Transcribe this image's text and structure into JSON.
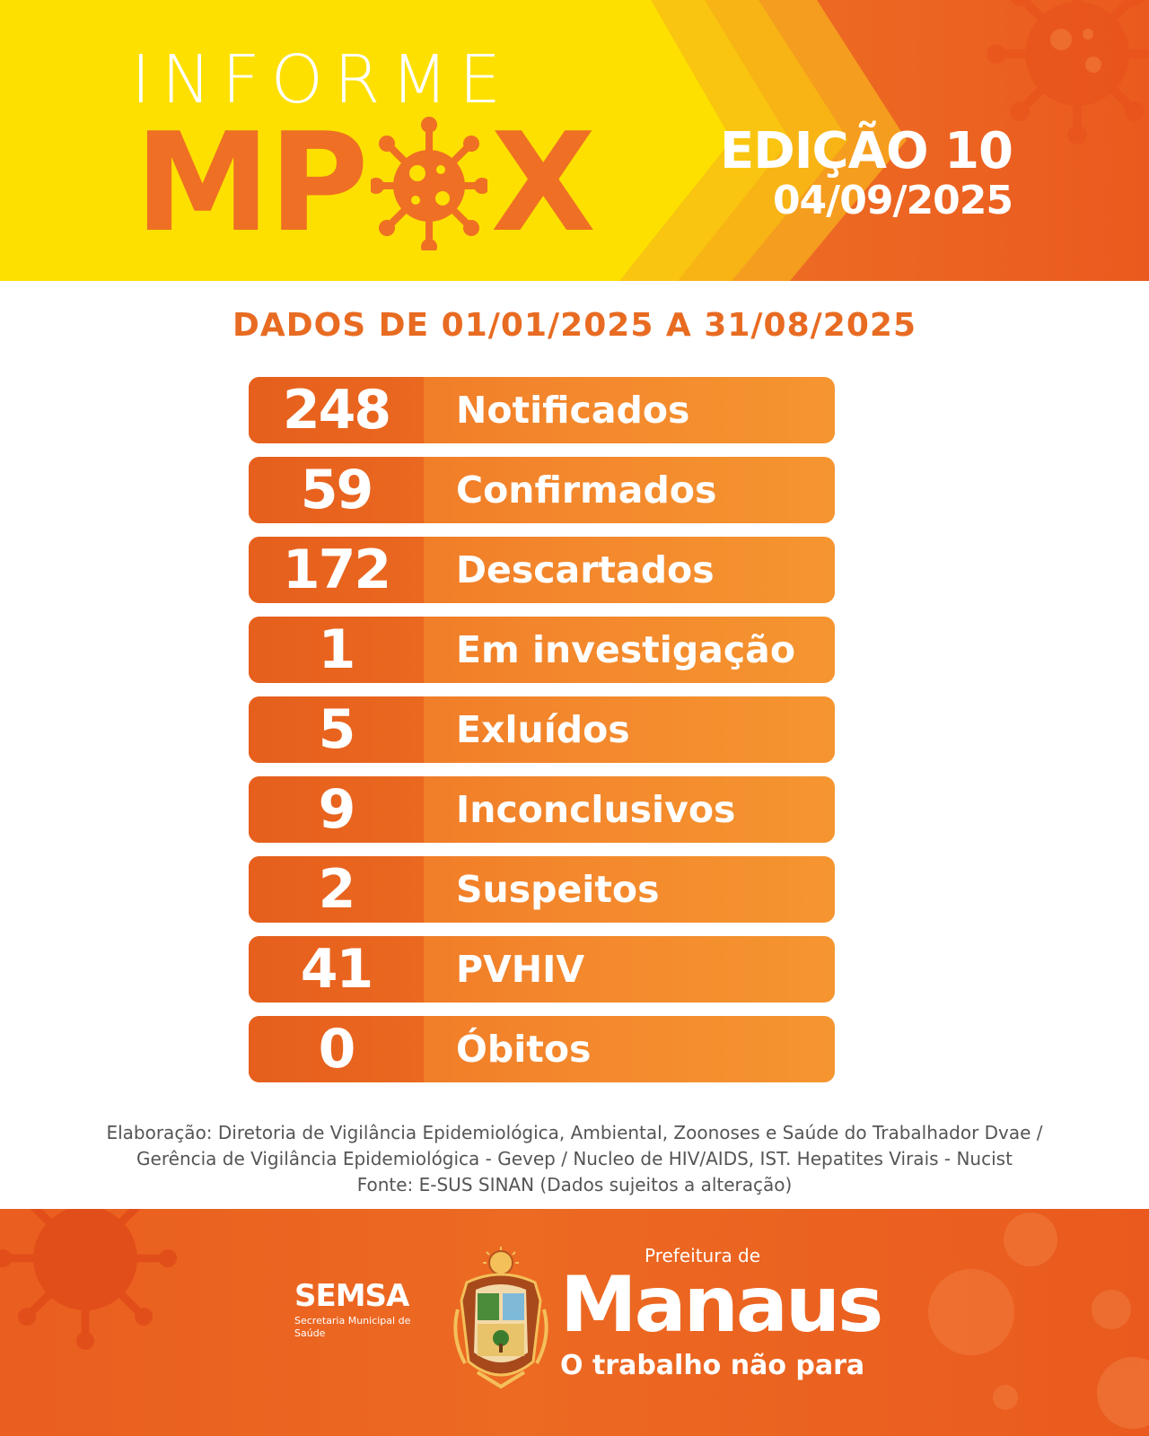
{
  "header": {
    "title_top": "INFORME",
    "title_main_left": "MP",
    "title_main_right": "X",
    "edition": "EDIÇÃO 10",
    "edition_date": "04/09/2025",
    "colors": {
      "yellow": "#fde000",
      "orange": "#ef6f24",
      "orange_light": "#f6a21e"
    }
  },
  "period": "DADOS DE 01/01/2025 A 31/08/2025",
  "stats": [
    {
      "value": "248",
      "label": "Notificados"
    },
    {
      "value": "59",
      "label": "Confirmados"
    },
    {
      "value": "172",
      "label": "Descartados"
    },
    {
      "value": "1",
      "label": "Em investigação"
    },
    {
      "value": "5",
      "label": "Exluídos"
    },
    {
      "value": "9",
      "label": "Inconclusivos"
    },
    {
      "value": "2",
      "label": "Suspeitos"
    },
    {
      "value": "41",
      "label": "PVHIV"
    },
    {
      "value": "0",
      "label": "Óbitos"
    }
  ],
  "footnote": {
    "line1": "Elaboração: Diretoria de Vigilância Epidemiológica, Ambiental, Zoonoses e Saúde do Trabalhador Dvae /",
    "line2": "Gerência de Vigilância Epidemiológica - Gevep / Nucleo de HIV/AIDS, IST. Hepatites Virais - Nucist",
    "line3": "Fonte: E-SUS SINAN (Dados sujeitos a alteração)"
  },
  "footer": {
    "semsa_name": "SEMSA",
    "semsa_sub": "Secretaria Municipal de Saúde",
    "pref_top": "Prefeitura de",
    "pref_city": "Manaus",
    "pref_slogan": "O trabalho não para",
    "icons": [
      "virus-icon",
      "coat-of-arms-icon"
    ]
  }
}
